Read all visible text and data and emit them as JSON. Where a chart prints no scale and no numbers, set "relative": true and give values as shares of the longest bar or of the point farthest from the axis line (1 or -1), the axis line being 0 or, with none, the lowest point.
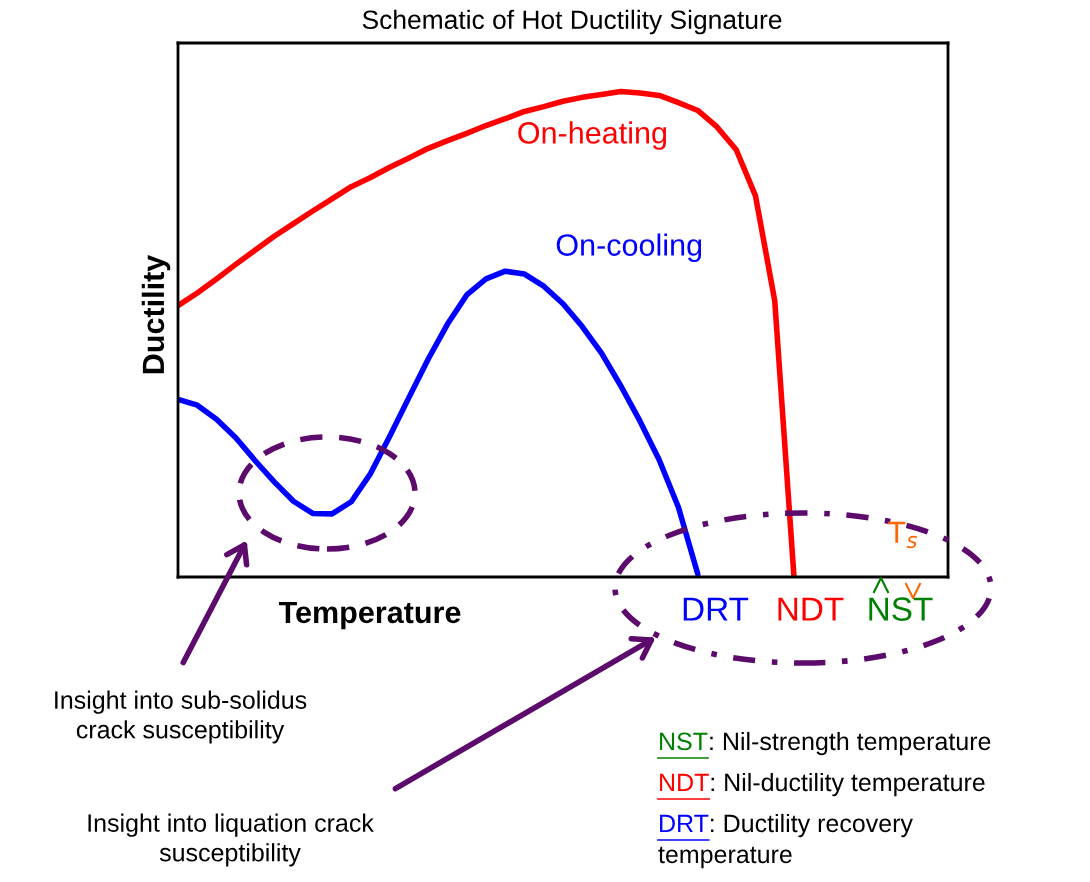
{
  "chart_data": {
    "type": "line",
    "title": "Schematic of Hot Ductility Signature",
    "xlabel": "Temperature",
    "ylabel": "Ductility",
    "relative": true,
    "categories": [
      null,
      null,
      null,
      null,
      null,
      null,
      null,
      null,
      null,
      null,
      null,
      null,
      null,
      null,
      null,
      null,
      null,
      null,
      null,
      null,
      null,
      null,
      null,
      null,
      null,
      null,
      null,
      null,
      null,
      null,
      null,
      null,
      null
    ],
    "series": [
      {
        "name": "On-heating",
        "color": "#ff0000",
        "values": [
          0.559,
          0.585,
          0.614,
          0.644,
          0.673,
          0.702,
          0.728,
          0.754,
          0.779,
          0.804,
          0.823,
          0.844,
          0.863,
          0.883,
          0.899,
          0.914,
          0.93,
          0.944,
          0.959,
          0.969,
          0.98,
          0.988,
          0.994,
          1,
          0.997,
          0.992,
          0.977,
          0.961,
          0.927,
          0.88,
          0.785,
          0.569,
          0
        ]
      },
      {
        "name": "On-cooling",
        "color": "#0000ff",
        "values": [
          0.366,
          0.354,
          0.325,
          0.287,
          0.24,
          0.196,
          0.156,
          0.131,
          0.13,
          0.155,
          0.213,
          0.29,
          0.37,
          0.449,
          0.521,
          0.581,
          0.614,
          0.63,
          0.624,
          0.599,
          0.563,
          0.516,
          0.461,
          0.394,
          0.321,
          0.241,
          0.143,
          0.006,
          null,
          null,
          null,
          null,
          null
        ]
      }
    ],
    "annotations": [
      "DRT",
      "NDT",
      "NST",
      "T$_{s}$",
      "Insight into sub-solidus\ncrack susceptibility",
      "Insight into liquation crack\nsusceptibility",
      "NST: Nil-strength temperature",
      "NDT: Nil-ductility temperature",
      "DRT: Ductility recovery\ntemperature"
    ]
  }
}
